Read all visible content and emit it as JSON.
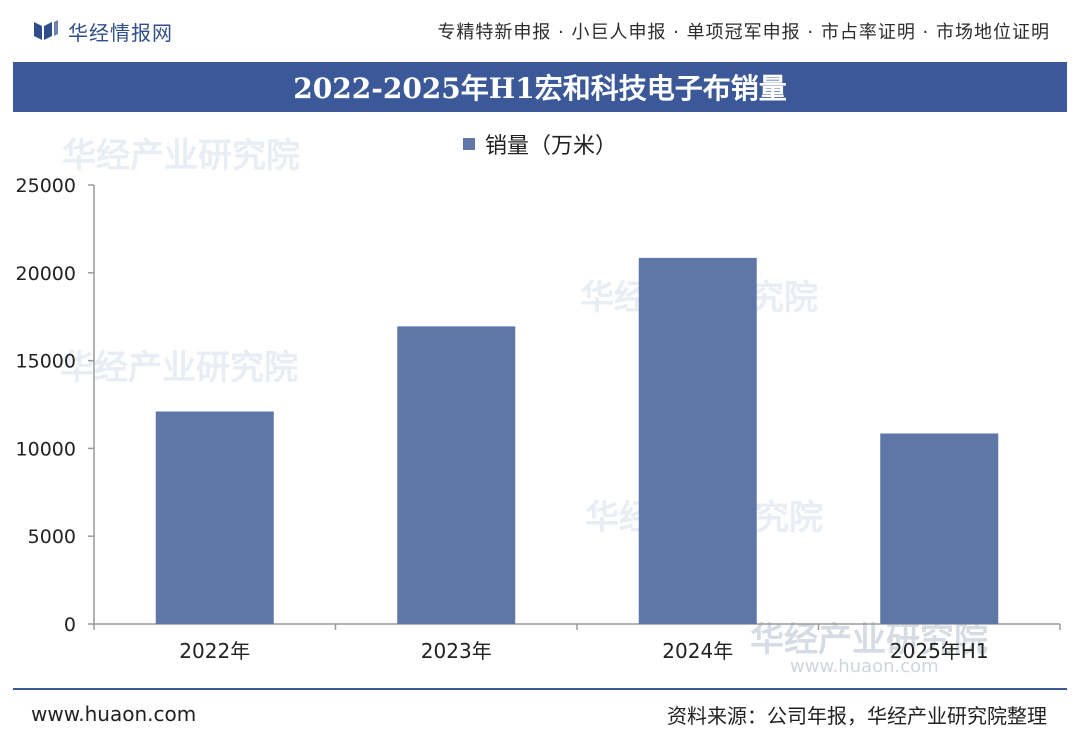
{
  "header": {
    "brand": "华经情报网",
    "services": "专精特新申报 · 小巨人申报 · 单项冠军申报 · 市占率证明 · 市场地位证明"
  },
  "chart_data": {
    "type": "bar",
    "title": "2022-2025年H1宏和科技电子布销量",
    "categories": [
      "2022年",
      "2023年",
      "2024年",
      "2025年H1"
    ],
    "series": [
      {
        "name": "销量（万米）",
        "values": [
          12100,
          16950,
          20850,
          10850
        ]
      }
    ],
    "ylim": [
      0,
      25000
    ],
    "yticks": [
      0,
      5000,
      10000,
      15000,
      20000,
      25000
    ],
    "legend_position": "top-center",
    "grid": false,
    "colors": {
      "bar": "#5f77a6",
      "axis": "#9a9a9a"
    }
  },
  "watermark": {
    "text": "华经产业研究院",
    "url": "www.huaon.com"
  },
  "footer": {
    "site": "www.huaon.com",
    "source": "资料来源：公司年报，华经产业研究院整理"
  },
  "colors": {
    "title_bar": "#3b5999",
    "brand": "#2f4f8a"
  }
}
